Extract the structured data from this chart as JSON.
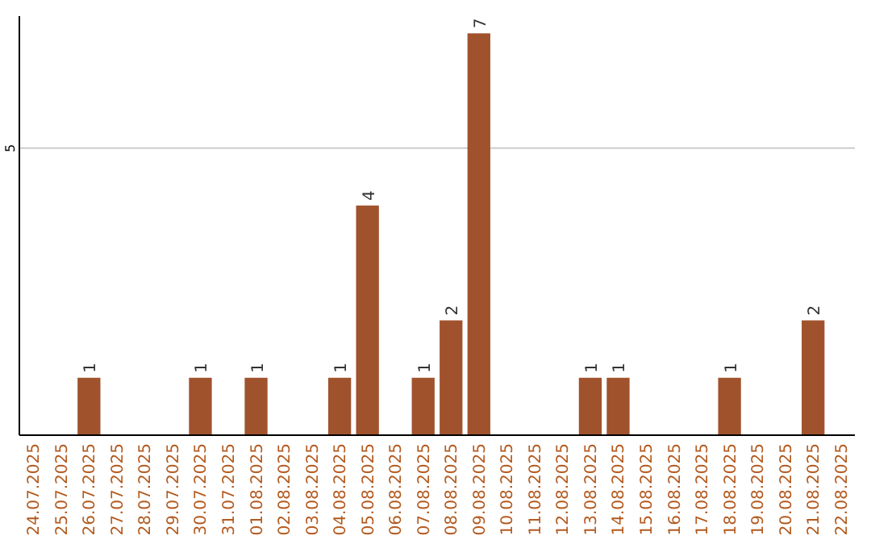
{
  "chart_data": {
    "type": "bar",
    "categories": [
      "24.07.2025",
      "25.07.2025",
      "26.07.2025",
      "27.07.2025",
      "28.07.2025",
      "29.07.2025",
      "30.07.2025",
      "31.07.2025",
      "01.08.2025",
      "02.08.2025",
      "03.08.2025",
      "04.08.2025",
      "05.08.2025",
      "06.08.2025",
      "07.08.2025",
      "08.08.2025",
      "09.08.2025",
      "10.08.2025",
      "11.08.2025",
      "12.08.2025",
      "13.08.2025",
      "14.08.2025",
      "15.08.2025",
      "16.08.2025",
      "17.08.2025",
      "18.08.2025",
      "19.08.2025",
      "20.08.2025",
      "21.08.2025",
      "22.08.2025"
    ],
    "values": [
      0,
      0,
      1,
      0,
      0,
      0,
      1,
      0,
      1,
      0,
      0,
      1,
      4,
      0,
      1,
      2,
      7,
      0,
      0,
      0,
      1,
      1,
      0,
      0,
      0,
      1,
      0,
      0,
      2,
      0
    ],
    "value_labels": [
      null,
      null,
      "1",
      null,
      null,
      null,
      "1",
      null,
      "1",
      null,
      null,
      "1",
      "4",
      null,
      "1",
      "2",
      "7",
      null,
      null,
      null,
      "1",
      "1",
      null,
      null,
      null,
      "1",
      null,
      null,
      "2",
      null
    ],
    "color": "#a0522d",
    "ylim": [
      0,
      7.3
    ],
    "yticks": [
      5
    ],
    "grid": "y"
  }
}
